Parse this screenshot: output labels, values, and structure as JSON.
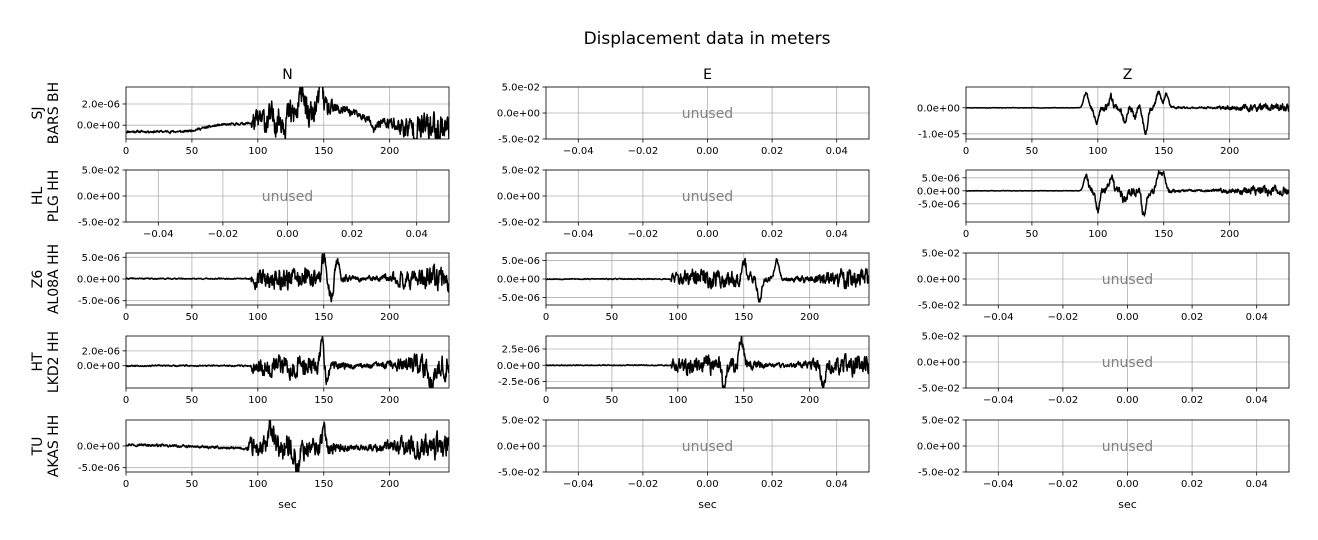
{
  "chart_data": {
    "type": "line",
    "title": "Displacement data in meters",
    "columns": [
      "N",
      "E",
      "Z"
    ],
    "xlabel": "sec",
    "unused_label": "unused",
    "rows": [
      {
        "network": "SJ",
        "station": "BARS BH",
        "panels": [
          {
            "status": "data",
            "xlim": [
              0,
              245
            ],
            "ylim": [
              -1.3e-06,
              3.6e-06
            ],
            "xticks": [
              "0",
              "50",
              "100",
              "150",
              "200"
            ],
            "yticks": [
              {
                "value": 2e-06,
                "label": "2.0e-06"
              },
              {
                "value": 0,
                "label": "0.0e+00"
              }
            ],
            "noise_amp": 1.2e-07,
            "signal_amp": 1.3e-06,
            "arrival": 95,
            "baseline": [
              [
                0,
                -6e-07
              ],
              [
                45,
                -6e-07
              ],
              [
                70,
                0
              ],
              [
                95,
                2e-07
              ],
              [
                130,
                1e-06
              ],
              [
                165,
                1.5e-06
              ],
              [
                185,
                5e-07
              ],
              [
                215,
                -3e-07
              ],
              [
                245,
                -1e-07
              ]
            ],
            "peaks": [
              [
                134,
                3.6e-06
              ],
              [
                137,
                -1e-06
              ],
              [
                148,
                3.3e-06
              ],
              [
                188,
                -1.2e-06
              ]
            ],
            "seed": 11
          },
          {
            "status": "unused",
            "xlim": [
              -0.05,
              0.05
            ],
            "ylim": [
              -0.05,
              0.05
            ],
            "xticks": [
              "−0.04",
              "−0.02",
              "0.00",
              "0.02",
              "0.04"
            ],
            "yticks": [
              {
                "value": 0.05,
                "label": "5.0e-02"
              },
              {
                "value": 0,
                "label": "0.0e+00"
              },
              {
                "value": -0.05,
                "label": "-5.0e-02"
              }
            ]
          },
          {
            "status": "data",
            "xlim": [
              0,
              245
            ],
            "ylim": [
              -1.2e-05,
              8e-06
            ],
            "xticks": [
              "0",
              "50",
              "100",
              "150",
              "200"
            ],
            "yticks": [
              {
                "value": 0,
                "label": "0.0e+00"
              },
              {
                "value": -1e-05,
                "label": "-1.0e-05"
              }
            ],
            "noise_amp": 1e-07,
            "signal_amp": 1.2e-06,
            "arrival": 90,
            "baseline": [
              [
                0,
                0
              ],
              [
                245,
                0
              ]
            ],
            "peaks": [
              [
                91,
                7.5e-06
              ],
              [
                99,
                -7e-06
              ],
              [
                110,
                5e-06
              ],
              [
                120,
                -6e-06
              ],
              [
                128,
                -4e-06
              ],
              [
                136,
                -1.15e-05
              ],
              [
                146,
                7.5e-06
              ],
              [
                152,
                6e-06
              ]
            ],
            "seed": 23
          }
        ]
      },
      {
        "network": "HL",
        "station": "PLG HH",
        "panels": [
          {
            "status": "unused",
            "xlim": [
              -0.05,
              0.05
            ],
            "ylim": [
              -0.05,
              0.05
            ],
            "xticks": [
              "−0.04",
              "−0.02",
              "0.00",
              "0.02",
              "0.04"
            ],
            "yticks": [
              {
                "value": 0.05,
                "label": "5.0e-02"
              },
              {
                "value": 0,
                "label": "0.0e+00"
              },
              {
                "value": -0.05,
                "label": "-5.0e-02"
              }
            ]
          },
          {
            "status": "unused",
            "xlim": [
              -0.05,
              0.05
            ],
            "ylim": [
              -0.05,
              0.05
            ],
            "xticks": [
              "−0.04",
              "−0.02",
              "0.00",
              "0.02",
              "0.04"
            ],
            "yticks": [
              {
                "value": 0.05,
                "label": "5.0e-02"
              },
              {
                "value": 0,
                "label": "0.0e+00"
              },
              {
                "value": -0.05,
                "label": "-5.0e-02"
              }
            ]
          },
          {
            "status": "data",
            "xlim": [
              0,
              245
            ],
            "ylim": [
              -1.2e-05,
              8e-06
            ],
            "xticks": [
              "0",
              "50",
              "100",
              "150",
              "200"
            ],
            "yticks": [
              {
                "value": 5e-06,
                "label": "5.0e-06"
              },
              {
                "value": 0,
                "label": "0.0e+00"
              },
              {
                "value": -5e-06,
                "label": "-5.0e-06"
              }
            ],
            "noise_amp": 1e-07,
            "signal_amp": 1.5e-06,
            "arrival": 90,
            "baseline": [
              [
                0,
                0
              ],
              [
                245,
                0
              ]
            ],
            "peaks": [
              [
                91,
                7e-06
              ],
              [
                100,
                -9e-06
              ],
              [
                110,
                6e-06
              ],
              [
                120,
                -5e-06
              ],
              [
                135,
                -1.1e-05
              ],
              [
                146,
                8e-06
              ],
              [
                150,
                7e-06
              ]
            ],
            "seed": 37
          }
        ]
      },
      {
        "network": "Z6",
        "station": "AL08A HH",
        "panels": [
          {
            "status": "data",
            "xlim": [
              0,
              245
            ],
            "ylim": [
              -6e-06,
              6e-06
            ],
            "xticks": [
              "0",
              "50",
              "100",
              "150",
              "200"
            ],
            "yticks": [
              {
                "value": 5e-06,
                "label": "5.0e-06"
              },
              {
                "value": 0,
                "label": "0.0e+00"
              },
              {
                "value": -5e-06,
                "label": "-5.0e-06"
              }
            ],
            "noise_amp": 1.5e-07,
            "signal_amp": 2.2e-06,
            "arrival": 95,
            "baseline": [
              [
                0,
                1e-07
              ],
              [
                245,
                0
              ]
            ],
            "peaks": [
              [
                150,
                5.5e-06
              ],
              [
                156,
                -5.5e-06
              ],
              [
                160,
                5e-06
              ]
            ],
            "seed": 41
          },
          {
            "status": "data",
            "xlim": [
              0,
              245
            ],
            "ylim": [
              -7e-06,
              7e-06
            ],
            "xticks": [
              "0",
              "50",
              "100",
              "150",
              "200"
            ],
            "yticks": [
              {
                "value": 5e-06,
                "label": "5.0e-06"
              },
              {
                "value": 0,
                "label": "0.0e+00"
              },
              {
                "value": -5e-06,
                "label": "-5.0e-06"
              }
            ],
            "noise_amp": 1.5e-07,
            "signal_amp": 2.2e-06,
            "arrival": 95,
            "baseline": [
              [
                0,
                0
              ],
              [
                245,
                0
              ]
            ],
            "peaks": [
              [
                150,
                6.5e-06
              ],
              [
                162,
                -6.5e-06
              ],
              [
                175,
                6e-06
              ]
            ],
            "seed": 53
          },
          {
            "status": "unused",
            "xlim": [
              -0.05,
              0.05
            ],
            "ylim": [
              -0.05,
              0.05
            ],
            "xticks": [
              "−0.04",
              "−0.02",
              "0.00",
              "0.02",
              "0.04"
            ],
            "yticks": [
              {
                "value": 0.05,
                "label": "5.0e-02"
              },
              {
                "value": 0,
                "label": "0.0e+00"
              },
              {
                "value": -0.05,
                "label": "-5.0e-02"
              }
            ]
          }
        ]
      },
      {
        "network": "HT",
        "station": "LKD2 HH",
        "panels": [
          {
            "status": "data",
            "xlim": [
              0,
              245
            ],
            "ylim": [
              -3e-06,
              4e-06
            ],
            "xticks": [
              "0",
              "50",
              "100",
              "150",
              "200"
            ],
            "yticks": [
              {
                "value": 2e-06,
                "label": "2.0e-06"
              },
              {
                "value": 0,
                "label": "0.0e+00"
              }
            ],
            "noise_amp": 1e-07,
            "signal_amp": 1.2e-06,
            "arrival": 95,
            "baseline": [
              [
                0,
                0
              ],
              [
                245,
                0
              ]
            ],
            "peaks": [
              [
                149,
                4e-06
              ],
              [
                152,
                -3e-06
              ],
              [
                232,
                -2.8e-06
              ]
            ],
            "seed": 67
          },
          {
            "status": "data",
            "xlim": [
              0,
              245
            ],
            "ylim": [
              -3.5e-06,
              4.5e-06
            ],
            "xticks": [
              "0",
              "50",
              "100",
              "150",
              "200"
            ],
            "yticks": [
              {
                "value": 2.5e-06,
                "label": "2.5e-06"
              },
              {
                "value": 0,
                "label": "0.0e+00"
              },
              {
                "value": -2.5e-06,
                "label": "-2.5e-06"
              }
            ],
            "noise_amp": 8e-08,
            "signal_amp": 1.3e-06,
            "arrival": 95,
            "baseline": [
              [
                0,
                0
              ],
              [
                245,
                0
              ]
            ],
            "peaks": [
              [
                148,
                4.4e-06
              ],
              [
                135,
                -3e-06
              ],
              [
                210,
                -3.2e-06
              ]
            ],
            "seed": 79
          },
          {
            "status": "unused",
            "xlim": [
              -0.05,
              0.05
            ],
            "ylim": [
              -0.05,
              0.05
            ],
            "xticks": [
              "−0.04",
              "−0.02",
              "0.00",
              "0.02",
              "0.04"
            ],
            "yticks": [
              {
                "value": 0.05,
                "label": "5.0e-02"
              },
              {
                "value": 0,
                "label": "0.0e+00"
              },
              {
                "value": -0.05,
                "label": "-5.0e-02"
              }
            ]
          }
        ]
      },
      {
        "network": "TU",
        "station": "AKAS HH",
        "panels": [
          {
            "status": "data",
            "xlim": [
              0,
              245
            ],
            "ylim": [
              -6e-06,
              6e-06
            ],
            "xticks": [
              "0",
              "50",
              "100",
              "150",
              "200"
            ],
            "yticks": [
              {
                "value": 0,
                "label": "0.0e+00"
              },
              {
                "value": -5e-06,
                "label": "-5.0e-06"
              }
            ],
            "noise_amp": 3e-07,
            "signal_amp": 2.5e-06,
            "arrival": 92,
            "baseline": [
              [
                0,
                4e-07
              ],
              [
                90,
                -6e-07
              ],
              [
                245,
                -2e-07
              ]
            ],
            "peaks": [
              [
                110,
                5.5e-06
              ],
              [
                130,
                -5.5e-06
              ],
              [
                150,
                5e-06
              ]
            ],
            "seed": 97
          },
          {
            "status": "unused",
            "xlim": [
              -0.05,
              0.05
            ],
            "ylim": [
              -0.05,
              0.05
            ],
            "xticks": [
              "−0.04",
              "−0.02",
              "0.00",
              "0.02",
              "0.04"
            ],
            "yticks": [
              {
                "value": 0.05,
                "label": "5.0e-02"
              },
              {
                "value": 0,
                "label": "0.0e+00"
              },
              {
                "value": -0.05,
                "label": "-5.0e-02"
              }
            ]
          },
          {
            "status": "unused",
            "xlim": [
              -0.05,
              0.05
            ],
            "ylim": [
              -0.05,
              0.05
            ],
            "xticks": [
              "−0.04",
              "−0.02",
              "0.00",
              "0.02",
              "0.04"
            ],
            "yticks": [
              {
                "value": 0.05,
                "label": "5.0e-02"
              },
              {
                "value": 0,
                "label": "0.0e+00"
              },
              {
                "value": -0.05,
                "label": "-5.0e-02"
              }
            ]
          }
        ]
      }
    ]
  }
}
